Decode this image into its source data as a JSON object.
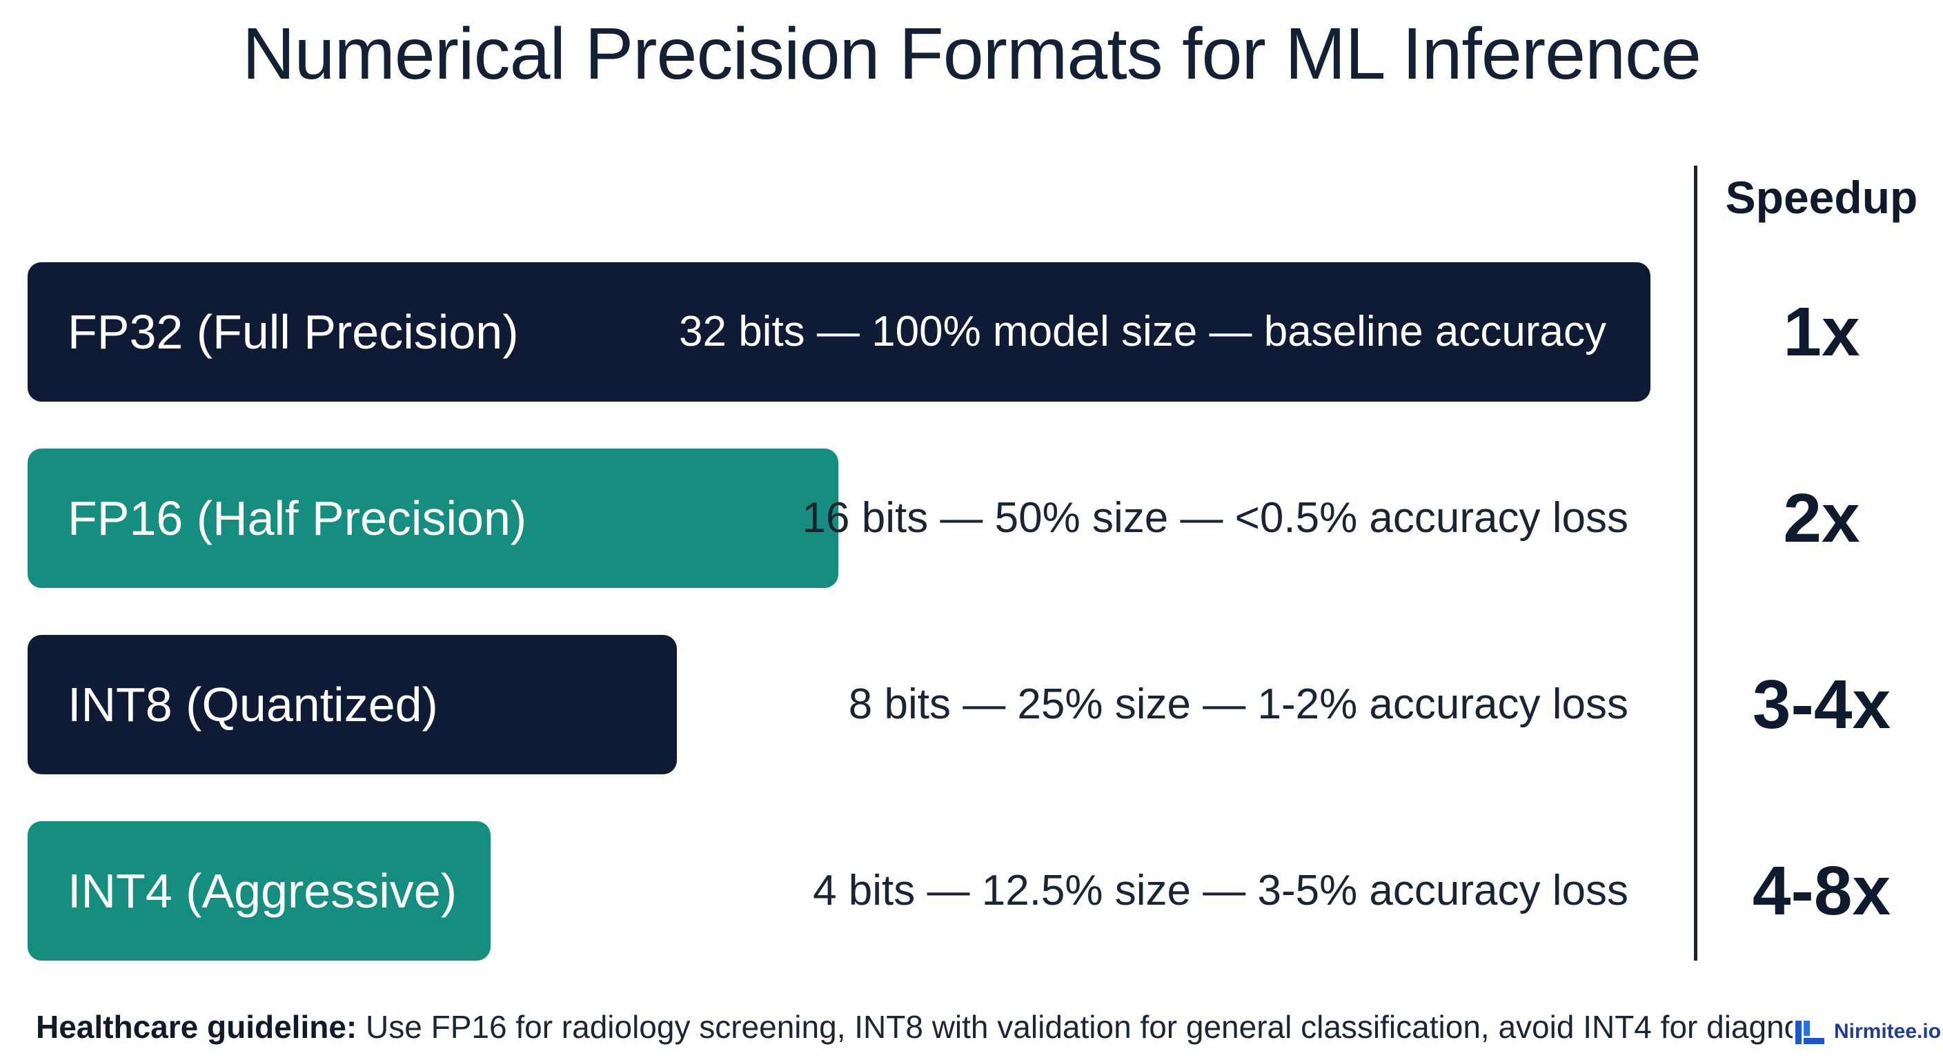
{
  "title": "Numerical Precision Formats for ML Inference",
  "speedup_header": "Speedup",
  "formats": [
    {
      "label": "FP32 (Full Precision)",
      "description": "32 bits — 100% model size — baseline accuracy",
      "speedup": "1x",
      "model_size_percent": 100,
      "color": "#0f1a34"
    },
    {
      "label": "FP16 (Half Precision)",
      "description": "16 bits — 50% size — <0.5% accuracy loss",
      "speedup": "2x",
      "model_size_percent": 50,
      "color": "#158d7f"
    },
    {
      "label": "INT8 (Quantized)",
      "description": "8 bits — 25% size — 1-2% accuracy loss",
      "speedup": "3-4x",
      "model_size_percent": 25,
      "color": "#0f1a34"
    },
    {
      "label": "INT4 (Aggressive)",
      "description": "4 bits — 12.5% size — 3-5% accuracy loss",
      "speedup": "4-8x",
      "model_size_percent": 12.5,
      "color": "#158d7f"
    }
  ],
  "footer": {
    "bold": "Healthcare guideline:",
    "text": " Use FP16 for radiology screening, INT8 with validation for general classification, avoid INT4 for diagnosti"
  },
  "brand": {
    "name": "Nirmitee.io",
    "icon": "nirmitee-logo-icon"
  }
}
